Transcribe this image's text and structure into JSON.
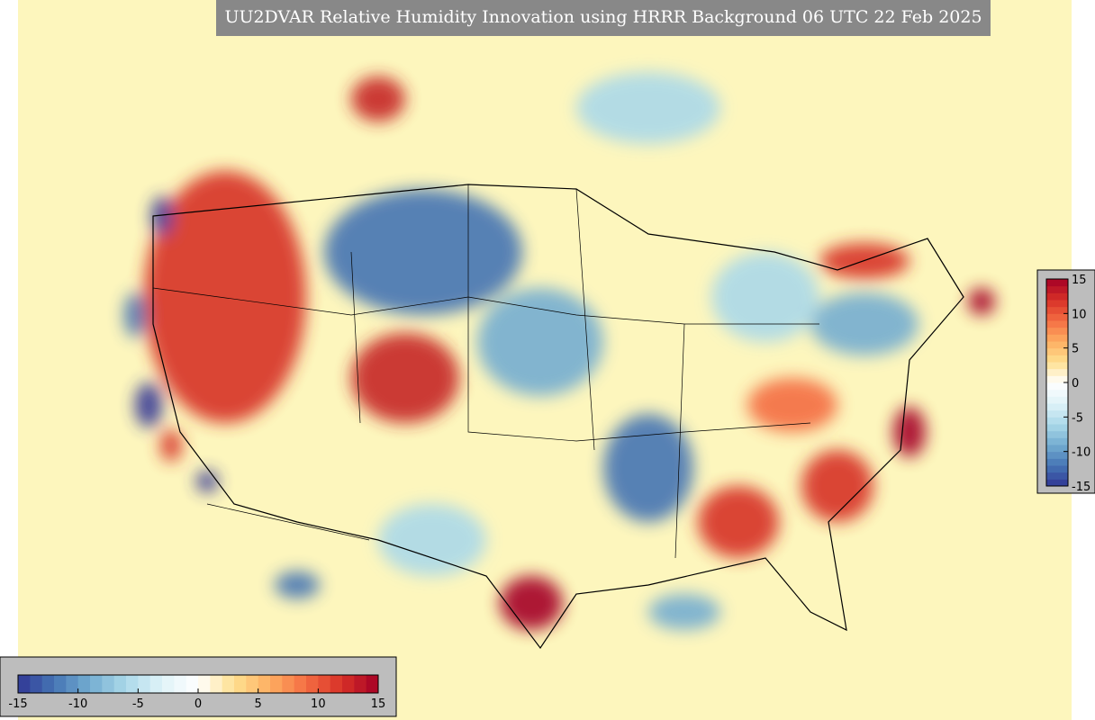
{
  "title": "UU2DVAR Relative Humidity Innovation using HRRR Background 06 UTC 22 Feb 2025",
  "colorbars": [
    {
      "orientation": "horizontal",
      "lim": [
        -15,
        15
      ],
      "ticks": [
        -15,
        -10,
        -5,
        0,
        5,
        10,
        15
      ]
    },
    {
      "orientation": "vertical",
      "lim": [
        -15,
        15
      ],
      "ticks": [
        -15,
        -10,
        -5,
        0,
        5,
        10,
        15
      ]
    }
  ],
  "colormap": [
    "#313695",
    "#4575b4",
    "#74add1",
    "#abd9e9",
    "#e0f3f8",
    "#ffffff",
    "#fee090",
    "#fdae61",
    "#f46d43",
    "#d73027",
    "#a50026"
  ]
}
